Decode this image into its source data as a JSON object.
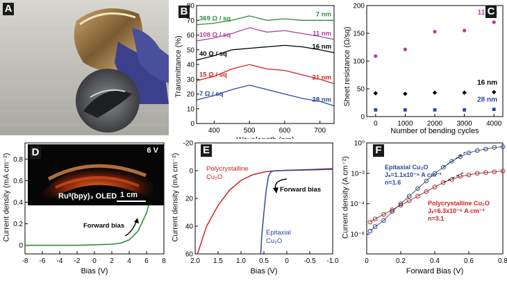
{
  "panel_labels": {
    "a": "A",
    "b": "B",
    "c": "C",
    "d": "D",
    "e": "E",
    "f": "F"
  },
  "colors": {
    "green": "#2e8b3a",
    "magenta": "#b0409a",
    "black": "#000000",
    "red": "#cc2222",
    "blue": "#2a4a9e"
  },
  "chart_data": [
    {
      "id": "B",
      "type": "line",
      "xlabel": "Wavelength (nm)",
      "ylabel": "Transmittance (%)",
      "xlim": [
        350,
        740
      ],
      "ylim": [
        0,
        80
      ],
      "xticks": [
        "400",
        "500",
        "600",
        "700"
      ],
      "yticks": [
        "0",
        "10",
        "20",
        "30",
        "40",
        "50",
        "60",
        "70",
        "80"
      ],
      "series": [
        {
          "name": "7 nm",
          "sheet_label": "369  Ω / sq",
          "color": "#2e8b3a",
          "x": [
            350,
            400,
            450,
            500,
            550,
            600,
            650,
            700,
            740
          ],
          "y": [
            67,
            68,
            70,
            73,
            70,
            71,
            70,
            70,
            70
          ]
        },
        {
          "name": "11 nm",
          "sheet_label": "108  Ω / sq",
          "color": "#b0409a",
          "x": [
            350,
            400,
            450,
            500,
            550,
            600,
            650,
            700,
            740
          ],
          "y": [
            56,
            58,
            61,
            65,
            62,
            63,
            61,
            59,
            57
          ]
        },
        {
          "name": "16 nm",
          "sheet_label": "40  Ω / sq",
          "color": "#000000",
          "x": [
            350,
            400,
            450,
            500,
            550,
            600,
            650,
            700,
            740
          ],
          "y": [
            43,
            46,
            50,
            51,
            52,
            53,
            52,
            50,
            48
          ]
        },
        {
          "name": "21 nm",
          "sheet_label": "15  Ω / sq",
          "color": "#cc2222",
          "x": [
            350,
            400,
            450,
            500,
            550,
            600,
            650,
            700,
            740
          ],
          "y": [
            29,
            32,
            37,
            40,
            37,
            36,
            33,
            30,
            27
          ]
        },
        {
          "name": "28 nm",
          "sheet_label": "7  Ω / sq",
          "color": "#2a4a9e",
          "x": [
            350,
            400,
            450,
            500,
            550,
            600,
            650,
            700,
            740
          ],
          "y": [
            16,
            19,
            23,
            26,
            23,
            20,
            17,
            15,
            12
          ]
        }
      ]
    },
    {
      "id": "C",
      "type": "scatter",
      "xlabel": "Number of bending cycles",
      "ylabel": "Sheet resistance (Ω/sq)",
      "xlim": [
        -300,
        4300
      ],
      "ylim": [
        0,
        200
      ],
      "xticks": [
        "0",
        "1000",
        "2000",
        "3000",
        "4000"
      ],
      "yticks": [
        "0",
        "50",
        "100",
        "150",
        "200"
      ],
      "series": [
        {
          "name": "11 nm",
          "color": "#b0409a",
          "marker": "circle",
          "x": [
            0,
            1000,
            2000,
            3000,
            4000
          ],
          "y": [
            109,
            121,
            153,
            155,
            170
          ]
        },
        {
          "name": "16 nm",
          "color": "#000000",
          "marker": "diamond",
          "x": [
            0,
            1000,
            2000,
            3000,
            4000
          ],
          "y": [
            42,
            41,
            43,
            43,
            44
          ]
        },
        {
          "name": "28 nm",
          "color": "#2a4a9e",
          "marker": "square",
          "x": [
            0,
            1000,
            2000,
            3000,
            4000
          ],
          "y": [
            12,
            12,
            12,
            12,
            13
          ]
        }
      ]
    },
    {
      "id": "D",
      "type": "line",
      "xlabel": "Bias (V)",
      "ylabel": "Current density (mA cm⁻²)",
      "xlim": [
        -8,
        8
      ],
      "ylim": [
        -0.08,
        0.95
      ],
      "xticks": [
        "-8",
        "-6",
        "-4",
        "-2",
        "0",
        "2",
        "4",
        "6",
        "8"
      ],
      "yticks": [
        "0",
        "0.2",
        "0.4",
        "0.6",
        "0.8"
      ],
      "inset_voltage": "6 V",
      "inset_caption": "Ruᴵᴵ(bpy)₃ OLED",
      "scale_bar": "1 cm",
      "annotation": "Forward bias",
      "series": [
        {
          "name": "",
          "color": "#2e8b3a",
          "x": [
            -8,
            -6,
            -4,
            -2,
            0,
            2,
            3,
            4,
            5,
            6,
            7,
            8
          ],
          "y": [
            0,
            0,
            0,
            0,
            0.005,
            0.01,
            0.02,
            0.05,
            0.13,
            0.3,
            0.6,
            0.92
          ]
        }
      ]
    },
    {
      "id": "E",
      "type": "line",
      "xlabel": "Bias (V)",
      "ylabel": "Current density (mA cm⁻²)",
      "xlim": [
        2.0,
        -1.0
      ],
      "ylim": [
        -20,
        60
      ],
      "xticks": [
        "2.0",
        "1.5",
        "1.0",
        "0.5",
        "0",
        "-0.5",
        "-1.0"
      ],
      "yticks": [
        "-20",
        "0",
        "20",
        "40",
        "60"
      ],
      "annotation": "Forward bias",
      "series": [
        {
          "name": "Polycrystalline Cu₂O",
          "color": "#cc2222",
          "x": [
            1.95,
            1.75,
            1.5,
            1.25,
            1.0,
            0.75,
            0.5,
            0.35,
            0.2,
            0,
            -0.5,
            -1.0
          ],
          "y": [
            60,
            40,
            25,
            14,
            7,
            3,
            1,
            0.3,
            0,
            -0.2,
            -0.5,
            -1
          ]
        },
        {
          "name": "Epitaxial Cu₂O",
          "color": "#2a4a9e",
          "x": [
            0.57,
            0.55,
            0.5,
            0.45,
            0.4,
            0.35,
            0.3,
            0.2,
            0,
            -0.5,
            -1.0
          ],
          "y": [
            60,
            48,
            30,
            14,
            4,
            1,
            0.2,
            0,
            -0.3,
            -0.8,
            -1.5
          ]
        }
      ]
    },
    {
      "id": "F",
      "type": "scatter",
      "xlabel": "Forward Bias (V)",
      "ylabel": "Current density (A cm⁻²)",
      "xlim": [
        0,
        0.8
      ],
      "ylim_log10": [
        -7.3,
        0
      ],
      "xticks": [
        "0",
        "0.2",
        "0.4",
        "0.6",
        "0.8"
      ],
      "yticks": [
        "10⁻⁶",
        "10⁻⁴",
        "10⁻²",
        "10⁰"
      ],
      "series": [
        {
          "name": "Epitaxial Cu₂O",
          "color": "#2a4a9e",
          "js": "Jₛ=1.1x10⁻⁶  A cm⁻²",
          "n": "n=1.6",
          "x": [
            0.02,
            0.05,
            0.1,
            0.15,
            0.2,
            0.25,
            0.3,
            0.35,
            0.4,
            0.45,
            0.5,
            0.55,
            0.6,
            0.65,
            0.7,
            0.75,
            0.8
          ],
          "log10y": [
            -5.8,
            -5.5,
            -5.1,
            -4.5,
            -4.0,
            -3.5,
            -3.0,
            -2.5,
            -2.0,
            -1.6,
            -1.2,
            -0.9,
            -0.65,
            -0.5,
            -0.4,
            -0.3,
            -0.25
          ]
        },
        {
          "name": "Polycrystalline Cu₂O",
          "color": "#cc2222",
          "js": "Jₛ=6.3x10⁻⁶  A cm⁻²",
          "n": "n=3.1",
          "x": [
            0.02,
            0.05,
            0.1,
            0.15,
            0.2,
            0.25,
            0.3,
            0.35,
            0.4,
            0.45,
            0.5,
            0.55,
            0.6,
            0.65,
            0.7,
            0.75,
            0.8
          ],
          "log10y": [
            -5.2,
            -5.0,
            -4.7,
            -4.4,
            -4.1,
            -3.8,
            -3.5,
            -3.2,
            -2.9,
            -2.6,
            -2.4,
            -2.2,
            -2.1,
            -2.0,
            -1.95,
            -1.9,
            -1.85
          ]
        }
      ]
    }
  ]
}
